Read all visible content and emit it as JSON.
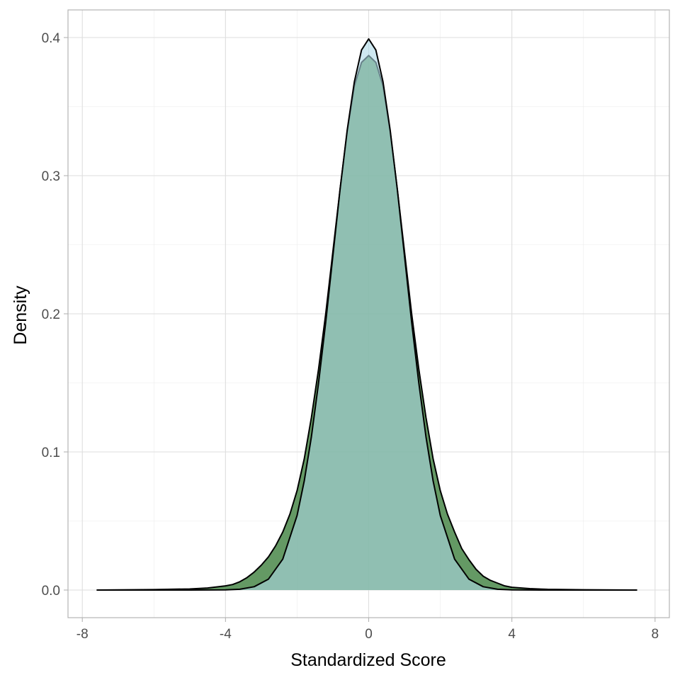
{
  "chart_data": {
    "type": "area",
    "title": "",
    "xlabel": "Standardized Score",
    "ylabel": "Density",
    "xlim": [
      -8.4,
      8.4
    ],
    "ylim": [
      -0.02,
      0.42
    ],
    "x_ticks": [
      -8,
      -4,
      0,
      4,
      8
    ],
    "x_tick_labels": [
      "-8",
      "-4",
      "0",
      "4",
      "8"
    ],
    "y_ticks": [
      0.0,
      0.1,
      0.2,
      0.3,
      0.4
    ],
    "y_tick_labels": [
      "0.0",
      "0.1",
      "0.2",
      "0.3",
      "0.4"
    ],
    "grid": true,
    "legend": "none",
    "series": [
      {
        "color": "#3d7f3d",
        "opacity": 0.8,
        "x": [
          -7.6,
          -6,
          -5,
          -4.5,
          -4,
          -3.8,
          -3.6,
          -3.4,
          -3.2,
          -3,
          -2.8,
          -2.6,
          -2.4,
          -2.2,
          -2,
          -1.8,
          -1.6,
          -1.4,
          -1.2,
          -1,
          -0.8,
          -0.6,
          -0.4,
          -0.2,
          0,
          0.2,
          0.4,
          0.6,
          0.8,
          1,
          1.2,
          1.4,
          1.6,
          1.8,
          2,
          2.2,
          2.4,
          2.6,
          2.8,
          3,
          3.2,
          3.4,
          3.6,
          3.8,
          4,
          4.5,
          5,
          6,
          7.5
        ],
        "y": [
          0,
          0.0003,
          0.0008,
          0.0015,
          0.003,
          0.004,
          0.006,
          0.009,
          0.013,
          0.018,
          0.024,
          0.032,
          0.042,
          0.055,
          0.072,
          0.095,
          0.125,
          0.16,
          0.2,
          0.245,
          0.29,
          0.332,
          0.365,
          0.382,
          0.387,
          0.382,
          0.365,
          0.332,
          0.29,
          0.245,
          0.2,
          0.16,
          0.125,
          0.095,
          0.072,
          0.055,
          0.042,
          0.03,
          0.022,
          0.015,
          0.01,
          0.007,
          0.005,
          0.003,
          0.002,
          0.001,
          0.0005,
          0.0002,
          0
        ]
      },
      {
        "color": "#add8e6",
        "opacity": 0.6,
        "x": [
          -7.6,
          -5,
          -4,
          -3.6,
          -3.2,
          -2.8,
          -2.4,
          -2,
          -1.8,
          -1.6,
          -1.4,
          -1.2,
          -1,
          -0.8,
          -0.6,
          -0.4,
          -0.2,
          0,
          0.2,
          0.4,
          0.6,
          0.8,
          1,
          1.2,
          1.4,
          1.6,
          1.8,
          2,
          2.4,
          2.8,
          3.2,
          3.6,
          4,
          5,
          7.5
        ],
        "y": [
          0,
          1e-05,
          0.0001,
          0.0006,
          0.0024,
          0.0079,
          0.0224,
          0.054,
          0.079,
          0.111,
          0.15,
          0.194,
          0.242,
          0.29,
          0.333,
          0.368,
          0.391,
          0.399,
          0.391,
          0.368,
          0.333,
          0.29,
          0.242,
          0.194,
          0.15,
          0.111,
          0.079,
          0.054,
          0.0224,
          0.0079,
          0.0024,
          0.0006,
          0.0001,
          1e-05,
          0
        ]
      }
    ]
  }
}
